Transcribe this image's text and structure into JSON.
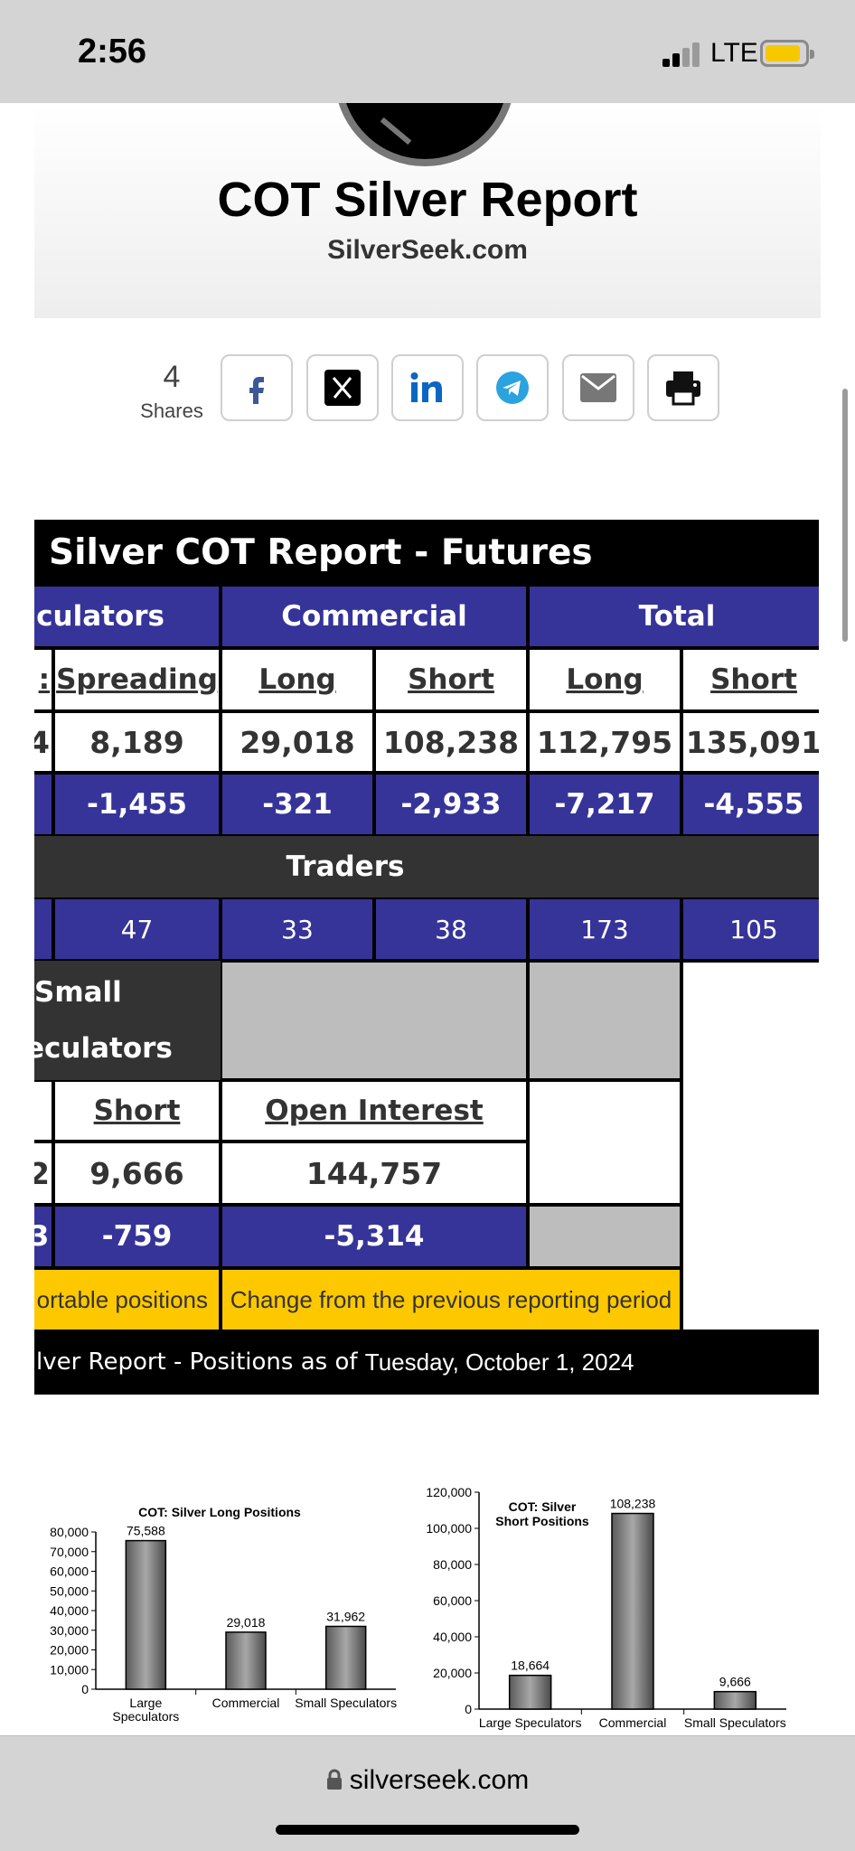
{
  "status_bar": {
    "time": "2:56",
    "network": "LTE"
  },
  "header": {
    "title": "COT Silver Report",
    "site": "SilverSeek.com"
  },
  "share": {
    "count": "4",
    "label": "Shares",
    "buttons": [
      "facebook-icon",
      "x-icon",
      "linkedin-icon",
      "telegram-icon",
      "email-icon",
      "printer-icon"
    ]
  },
  "table": {
    "title": "Silver COT Report - Futures",
    "groups": [
      "culators",
      "Commercial",
      "Total"
    ],
    "col_headers": [
      ":",
      "Spreading",
      "Long",
      "Short",
      "Long",
      "Short"
    ],
    "positions": [
      "4",
      "8,189",
      "29,018",
      "108,238",
      "112,795",
      "135,091"
    ],
    "changes": [
      "",
      "-1,455",
      "-321",
      "-2,933",
      "-7,217",
      "-4,555"
    ],
    "traders_label": "Traders",
    "traders": [
      "",
      "47",
      "33",
      "38",
      "173",
      "105"
    ],
    "small_label_1": "Small",
    "small_label_2": "eculators",
    "small_headers": [
      "",
      "Short",
      "Open Interest"
    ],
    "small_positions": [
      "2",
      "9,666",
      "144,757"
    ],
    "small_changes": [
      "3",
      "-759",
      "-5,314"
    ],
    "legend_left": "ortable positions",
    "legend_right": "Change from the previous reporting period",
    "footer_prefix": "lver Report - Positions as of",
    "footer_date": "Tuesday, October 1, 2024"
  },
  "chart_data": [
    {
      "type": "bar",
      "title": "COT: Silver Long Positions",
      "categories": [
        "Large Speculators",
        "Commercial",
        "Small Speculators"
      ],
      "values": [
        75588,
        29018,
        31962
      ],
      "data_labels": [
        "75,588",
        "29,018",
        "31,962"
      ],
      "ylim": [
        0,
        80000
      ],
      "yticks": [
        "0",
        "10,000",
        "20,000",
        "30,000",
        "40,000",
        "50,000",
        "60,000",
        "70,000",
        "80,000"
      ],
      "legend": "none"
    },
    {
      "type": "bar",
      "title_lines": [
        "COT: Silver",
        "Short  Positions"
      ],
      "categories": [
        "Large Speculators",
        "Commercial",
        "Small Speculators"
      ],
      "values": [
        18664,
        108238,
        9666
      ],
      "data_labels": [
        "18,664",
        "108,238",
        "9,666"
      ],
      "ylim": [
        0,
        120000
      ],
      "yticks": [
        "0",
        "20,000",
        "40,000",
        "60,000",
        "80,000",
        "100,000",
        "120,000"
      ],
      "legend": "none"
    }
  ],
  "bottom_bar": {
    "url": "silverseek.com"
  }
}
